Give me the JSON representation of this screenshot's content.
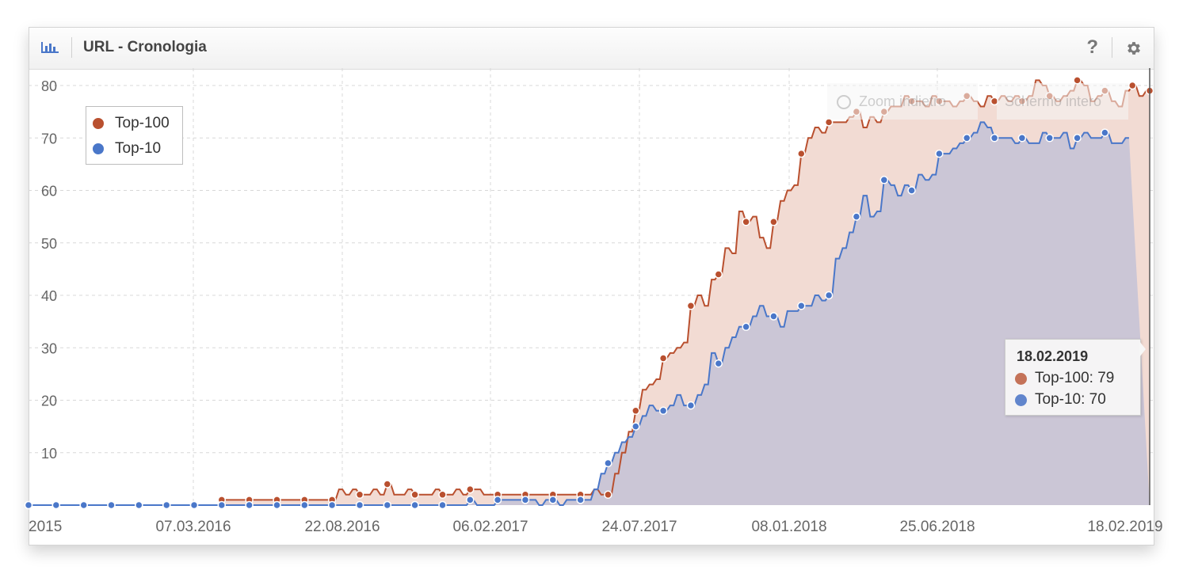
{
  "header": {
    "title": "URL - Cronologia",
    "chart_icon": "bar-chart-icon",
    "help_icon": "?",
    "settings_icon": "gear-icon"
  },
  "controls": {
    "zoom_out_label": "Zoom indietro",
    "fullscreen_label": "Schermo intero"
  },
  "colors": {
    "top100": "#b9502f",
    "top10": "#4a77c9",
    "top100_fill": "#f2dbd3",
    "top10_fill": "#cbc6d6"
  },
  "tooltip": {
    "date": "18.02.2019",
    "rows": [
      {
        "label": "Top-100: 79"
      },
      {
        "label": "Top-10: 70"
      }
    ]
  },
  "chart_data": {
    "type": "area",
    "title": "",
    "xlabel": "",
    "ylabel": "",
    "ylim": [
      0,
      80
    ],
    "yticks": [
      10,
      20,
      30,
      40,
      50,
      60,
      70,
      80
    ],
    "xticks": [
      "2015",
      "07.03.2016",
      "22.08.2016",
      "06.02.2017",
      "24.07.2017",
      "08.01.2018",
      "25.06.2018",
      "18.02.2019"
    ],
    "legend_position": "top-left",
    "grid": true,
    "series": [
      {
        "name": "Top-100",
        "values": [
          0,
          0,
          0,
          0,
          0,
          0,
          0,
          0,
          0,
          0,
          0,
          0,
          0,
          0,
          0,
          0,
          0,
          0,
          0,
          0,
          0,
          0,
          0,
          0,
          0,
          0,
          0,
          0,
          0,
          0,
          0,
          0,
          0,
          0,
          0,
          0,
          0,
          0,
          0,
          0,
          0,
          0,
          0,
          0,
          0,
          0,
          0,
          0,
          0,
          0,
          0,
          0,
          0,
          0,
          0,
          0,
          1,
          1,
          1,
          1,
          1,
          1,
          1,
          1,
          1,
          1,
          1,
          1,
          1,
          1,
          1,
          1,
          1,
          1,
          1,
          1,
          1,
          1,
          1,
          1,
          1,
          1,
          1,
          1,
          1,
          1,
          1,
          1,
          1,
          1,
          3,
          3,
          2,
          2,
          3,
          3,
          2,
          2,
          2,
          2,
          3,
          3,
          2,
          2,
          4,
          4,
          2,
          2,
          2,
          2,
          3,
          3,
          2,
          2,
          2,
          2,
          2,
          2,
          3,
          3,
          2,
          2,
          2,
          2,
          3,
          3,
          2,
          2,
          3,
          3,
          3,
          3,
          2,
          2,
          2,
          2,
          2,
          2,
          2,
          2,
          2,
          2,
          2,
          2,
          2,
          2,
          2,
          2,
          2,
          2,
          2,
          2,
          2,
          2,
          2,
          2,
          2,
          2,
          2,
          2,
          2,
          2,
          2,
          2,
          3,
          3,
          2,
          2,
          2,
          2,
          6,
          6,
          10,
          10,
          14,
          14,
          18,
          18,
          22,
          22,
          23,
          23,
          24,
          24,
          28,
          28,
          29,
          29,
          30,
          30,
          31,
          31,
          38,
          38,
          40,
          40,
          38,
          38,
          43,
          43,
          44,
          44,
          49,
          49,
          48,
          48,
          56,
          56,
          54,
          54,
          55,
          55,
          51,
          51,
          49,
          49,
          54,
          54,
          58,
          58,
          60,
          60,
          61,
          61,
          67,
          67,
          70,
          70,
          72,
          72,
          71,
          71,
          73,
          73,
          73,
          73,
          73,
          73,
          74,
          74,
          75,
          75,
          72,
          72,
          74,
          74,
          73,
          73,
          75,
          75,
          76,
          76,
          76,
          76,
          78,
          78,
          77,
          77,
          77,
          77,
          76,
          76,
          78,
          78,
          77,
          77,
          77,
          77,
          76,
          76,
          77,
          77,
          78,
          78,
          77,
          77,
          76,
          76,
          78,
          78,
          77,
          77,
          78,
          78,
          77,
          77,
          78,
          78,
          77,
          77,
          78,
          78,
          81,
          81,
          80,
          80,
          78,
          78,
          77,
          77,
          78,
          78,
          79,
          79,
          81,
          81,
          80,
          80,
          77,
          77,
          78,
          78,
          79,
          79,
          77,
          77,
          76,
          76,
          79,
          79,
          80,
          80,
          78,
          78,
          79,
          79
        ],
        "color": "#b9502f"
      },
      {
        "name": "Top-10",
        "values": [
          0,
          0,
          0,
          0,
          0,
          0,
          0,
          0,
          0,
          0,
          0,
          0,
          0,
          0,
          0,
          0,
          0,
          0,
          0,
          0,
          0,
          0,
          0,
          0,
          0,
          0,
          0,
          0,
          0,
          0,
          0,
          0,
          0,
          0,
          0,
          0,
          0,
          0,
          0,
          0,
          0,
          0,
          0,
          0,
          0,
          0,
          0,
          0,
          0,
          0,
          0,
          0,
          0,
          0,
          0,
          0,
          0,
          0,
          0,
          0,
          0,
          0,
          0,
          0,
          0,
          0,
          0,
          0,
          0,
          0,
          0,
          0,
          0,
          0,
          0,
          0,
          0,
          0,
          0,
          0,
          0,
          0,
          0,
          0,
          0,
          0,
          0,
          0,
          0,
          0,
          0,
          0,
          0,
          0,
          0,
          0,
          0,
          0,
          0,
          0,
          0,
          0,
          0,
          0,
          0,
          0,
          0,
          0,
          0,
          0,
          0,
          0,
          0,
          0,
          0,
          0,
          0,
          0,
          0,
          0,
          0,
          0,
          0,
          0,
          0,
          0,
          0,
          0,
          1,
          1,
          0,
          0,
          0,
          0,
          0,
          0,
          1,
          1,
          1,
          1,
          1,
          1,
          1,
          1,
          1,
          1,
          1,
          1,
          0,
          0,
          1,
          1,
          1,
          1,
          0,
          0,
          1,
          1,
          1,
          1,
          1,
          1,
          1,
          1,
          3,
          3,
          6,
          6,
          8,
          8,
          10,
          10,
          12,
          12,
          13,
          13,
          15,
          15,
          17,
          17,
          19,
          19,
          18,
          18,
          18,
          18,
          19,
          19,
          21,
          21,
          19,
          19,
          19,
          19,
          21,
          21,
          23,
          23,
          29,
          29,
          27,
          27,
          30,
          30,
          32,
          32,
          34,
          34,
          34,
          34,
          36,
          36,
          38,
          38,
          36,
          36,
          36,
          36,
          34,
          34,
          37,
          37,
          37,
          37,
          38,
          38,
          38,
          38,
          40,
          40,
          39,
          39,
          40,
          40,
          47,
          47,
          49,
          49,
          52,
          52,
          55,
          55,
          59,
          59,
          55,
          55,
          56,
          56,
          62,
          62,
          61,
          61,
          59,
          59,
          61,
          61,
          60,
          60,
          63,
          63,
          62,
          62,
          63,
          63,
          67,
          67,
          67,
          67,
          68,
          68,
          69,
          69,
          70,
          70,
          71,
          71,
          73,
          73,
          72,
          72,
          70,
          70,
          70,
          70,
          70,
          70,
          69,
          69,
          70,
          70,
          69,
          69,
          69,
          69,
          71,
          71,
          70,
          70,
          70,
          70,
          71,
          71,
          68,
          68,
          70,
          70,
          71,
          71,
          70,
          70,
          70,
          70,
          71,
          71,
          69,
          69,
          69,
          69,
          70,
          70
        ],
        "color": "#4a77c9"
      }
    ]
  }
}
